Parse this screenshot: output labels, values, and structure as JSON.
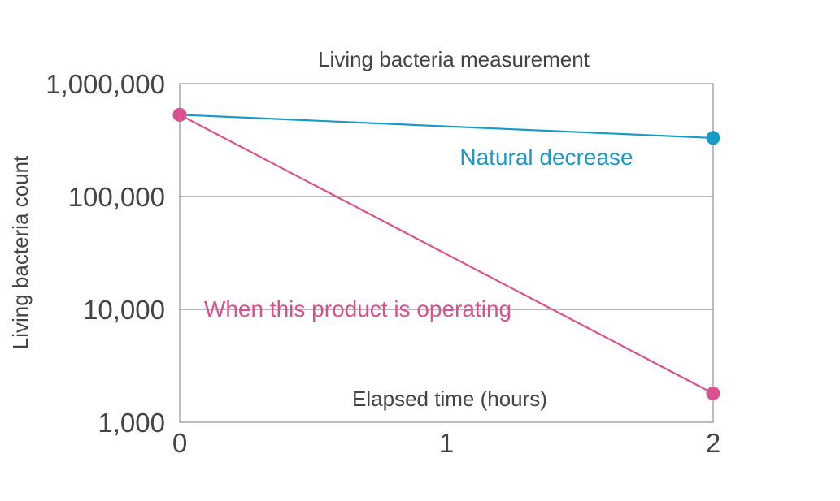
{
  "chart_data": {
    "type": "line",
    "title": "Living bacteria measurement",
    "xlabel": "Elapsed time (hours)",
    "ylabel": "Living bacteria count",
    "y_scale": "log",
    "ylim": [
      1000,
      1000000
    ],
    "xlim": [
      0,
      2
    ],
    "x_ticks": [
      "0",
      "1",
      "2"
    ],
    "y_ticks": [
      "1,000",
      "10,000",
      "100,000",
      "1,000,000"
    ],
    "grid": true,
    "series": [
      {
        "name": "Natural decrease",
        "color": "#1a9bc7",
        "x": [
          0,
          2
        ],
        "y": [
          530000,
          330000
        ]
      },
      {
        "name": "When this product is operating",
        "color": "#d9518e",
        "x": [
          0,
          2
        ],
        "y": [
          530000,
          1800
        ]
      }
    ]
  }
}
